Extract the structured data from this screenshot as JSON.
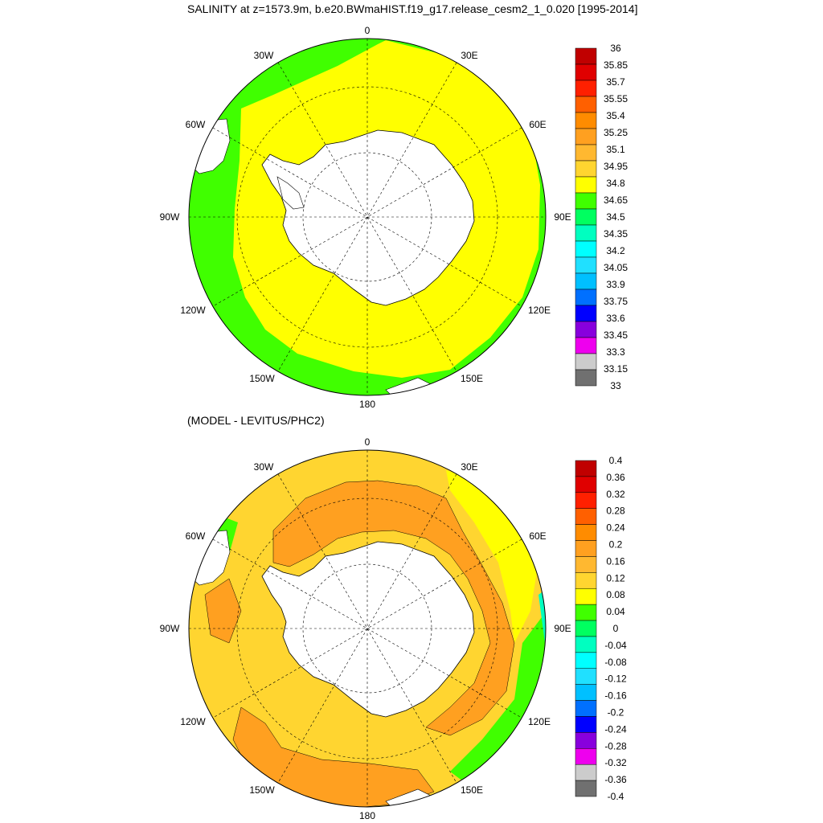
{
  "chart_data": [
    {
      "type": "polar-contour-map",
      "title": "SALINITY at z=1573.9m, b.e20.BWmaHIST.f19_g17.release_cesm2_1_0.020 [1995-2014]",
      "projection": "south polar stereographic",
      "longitude_labels": [
        "0",
        "30E",
        "60E",
        "90E",
        "120E",
        "150E",
        "180",
        "150W",
        "120W",
        "90W",
        "60W",
        "30W"
      ],
      "colorbar": {
        "levels": [
          "36",
          "35.85",
          "35.7",
          "35.55",
          "35.4",
          "35.25",
          "35.1",
          "34.95",
          "34.8",
          "34.65",
          "34.5",
          "34.35",
          "34.2",
          "34.05",
          "33.9",
          "33.75",
          "33.6",
          "33.45",
          "33.3",
          "33.15",
          "33"
        ],
        "colors": [
          "#c00000",
          "#e00000",
          "#ff2000",
          "#ff6000",
          "#ff8c00",
          "#ffa020",
          "#ffb830",
          "#ffd530",
          "#ffff00",
          "#40ff00",
          "#00ff60",
          "#00ffc0",
          "#00ffff",
          "#20e0ff",
          "#00c0ff",
          "#0070ff",
          "#0000ff",
          "#8800dd",
          "#ee00ee",
          "#cccccc",
          "#707070"
        ]
      },
      "dominant_values": {
        "open_ocean": "34.8-34.95",
        "edges": "34.65-34.8"
      }
    },
    {
      "type": "polar-contour-map",
      "title": "(MODEL - LEVITUS/PHC2)",
      "projection": "south polar stereographic",
      "longitude_labels": [
        "0",
        "30E",
        "60E",
        "90E",
        "120E",
        "150E",
        "180",
        "150W",
        "120W",
        "90W",
        "60W",
        "30W"
      ],
      "colorbar": {
        "levels": [
          "0.4",
          "0.36",
          "0.32",
          "0.28",
          "0.24",
          "0.2",
          "0.16",
          "0.12",
          "0.08",
          "0.04",
          "0",
          "-0.04",
          "-0.08",
          "-0.12",
          "-0.16",
          "-0.2",
          "-0.24",
          "-0.28",
          "-0.32",
          "-0.36",
          "-0.4"
        ],
        "colors": [
          "#c00000",
          "#e00000",
          "#ff2000",
          "#ff6000",
          "#ff8c00",
          "#ffa020",
          "#ffb830",
          "#ffd530",
          "#ffff00",
          "#40ff00",
          "#00ff60",
          "#00ffc0",
          "#00ffff",
          "#20e0ff",
          "#00c0ff",
          "#0070ff",
          "#0000ff",
          "#8800dd",
          "#ee00ee",
          "#cccccc",
          "#707070"
        ]
      },
      "dominant_values": {
        "open_ocean": "0.12-0.2",
        "near_antarctica": "0.2-0.24"
      }
    }
  ],
  "colors": {
    "salinity_main": "#ffff00",
    "salinity_edge": "#40ff00",
    "diff_main": "#ffd530",
    "diff_mid": "#ffb830",
    "diff_high": "#ffa020",
    "land": "#ffffff",
    "outline": "#000000"
  }
}
